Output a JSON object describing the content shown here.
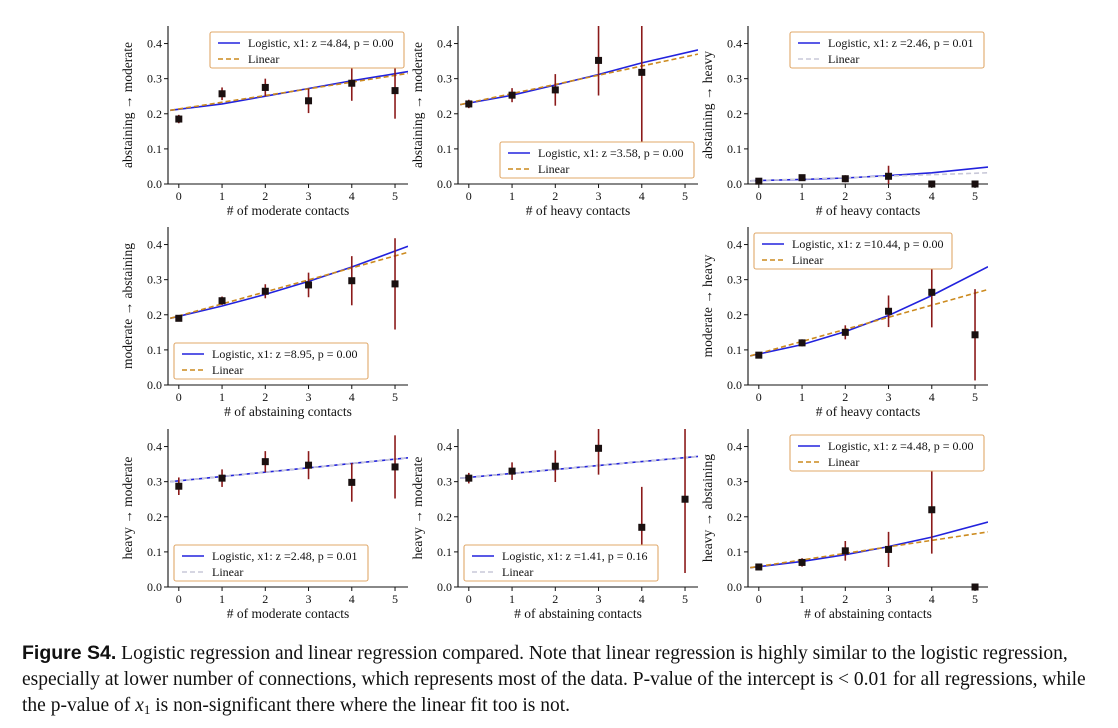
{
  "colors": {
    "logistic": "#2222dd",
    "linear": "#cc8a1e",
    "linear_faint": "#c8c8d8",
    "errorbar": "#8b1a1a",
    "marker": "#1a1010",
    "legend_border": "#e0a86a"
  },
  "legend_labels": {
    "linear": "Linear"
  },
  "chart_data": [
    {
      "type": "scatter",
      "xlabel": "# of moderate contacts",
      "ylabel": "abstaining → moderate",
      "x": [
        0,
        1,
        2,
        3,
        4,
        5
      ],
      "y": [
        0.185,
        0.257,
        0.275,
        0.237,
        0.287,
        0.266
      ],
      "err": [
        0.012,
        0.018,
        0.025,
        0.035,
        0.05,
        0.08
      ],
      "logistic_fit": {
        "label": "Logistic, x1: z =4.84, p = 0.00",
        "x": [
          -0.2,
          1,
          2,
          3,
          4,
          5.3
        ],
        "y": [
          0.21,
          0.228,
          0.25,
          0.272,
          0.294,
          0.32
        ]
      },
      "linear_fit": {
        "label": "Linear",
        "x": [
          -0.2,
          5.3
        ],
        "y": [
          0.21,
          0.315
        ],
        "faint": false
      },
      "legend_position": "top-right",
      "xlim": [
        -0.25,
        5.3
      ],
      "ylim": [
        0,
        0.45
      ],
      "xticks": [
        0,
        1,
        2,
        3,
        4,
        5
      ],
      "yticks": [
        0,
        0.1,
        0.2,
        0.3,
        0.4
      ]
    },
    {
      "type": "scatter",
      "xlabel": "# of heavy contacts",
      "ylabel": "abstaining → moderate",
      "x": [
        0,
        1,
        2,
        3,
        4
      ],
      "y": [
        0.228,
        0.253,
        0.268,
        0.352,
        0.318
      ],
      "err": [
        0.012,
        0.02,
        0.045,
        0.1,
        0.2
      ],
      "logistic_fit": {
        "label": "Logistic, x1: z =3.58, p = 0.00",
        "x": [
          -0.2,
          1,
          2,
          3,
          4,
          5.3
        ],
        "y": [
          0.226,
          0.253,
          0.282,
          0.312,
          0.345,
          0.382
        ]
      },
      "linear_fit": {
        "label": "Linear",
        "x": [
          -0.2,
          5.3
        ],
        "y": [
          0.226,
          0.37
        ],
        "faint": false
      },
      "legend_position": "bottom-right",
      "xlim": [
        -0.25,
        5.3
      ],
      "ylim": [
        0,
        0.45
      ],
      "xticks": [
        0,
        1,
        2,
        3,
        4,
        5
      ],
      "yticks": [
        0,
        0.1,
        0.2,
        0.3,
        0.4
      ]
    },
    {
      "type": "scatter",
      "xlabel": "# of heavy contacts",
      "ylabel": "abstaining → heavy",
      "x": [
        0,
        1,
        2,
        3,
        4,
        5
      ],
      "y": [
        0.008,
        0.018,
        0.015,
        0.022,
        0.0,
        0.0
      ],
      "err": [
        0.003,
        0.008,
        0.01,
        0.03,
        0.0,
        0.0
      ],
      "logistic_fit": {
        "label": "Logistic, x1: z =2.46, p = 0.01",
        "x": [
          -0.2,
          1,
          2,
          3,
          4,
          5.3
        ],
        "y": [
          0.009,
          0.013,
          0.017,
          0.024,
          0.032,
          0.048
        ]
      },
      "linear_fit": {
        "label": "Linear",
        "x": [
          -0.2,
          5.3
        ],
        "y": [
          0.009,
          0.032
        ],
        "faint": true
      },
      "legend_position": "top-right",
      "xlim": [
        -0.25,
        5.3
      ],
      "ylim": [
        0,
        0.45
      ],
      "xticks": [
        0,
        1,
        2,
        3,
        4,
        5
      ],
      "yticks": [
        0,
        0.1,
        0.2,
        0.3,
        0.4
      ]
    },
    {
      "type": "scatter",
      "xlabel": "# of abstaining contacts",
      "ylabel": "moderate → abstaining",
      "x": [
        0,
        1,
        2,
        3,
        4,
        5
      ],
      "y": [
        0.19,
        0.24,
        0.267,
        0.285,
        0.297,
        0.288
      ],
      "err": [
        0.007,
        0.012,
        0.02,
        0.035,
        0.07,
        0.13
      ],
      "logistic_fit": {
        "label": "Logistic, x1: z =8.95, p = 0.00",
        "x": [
          -0.2,
          1,
          2,
          3,
          4,
          5.3
        ],
        "y": [
          0.19,
          0.225,
          0.258,
          0.295,
          0.336,
          0.395
        ]
      },
      "linear_fit": {
        "label": "Linear",
        "x": [
          -0.2,
          5.3
        ],
        "y": [
          0.19,
          0.378
        ],
        "faint": false
      },
      "legend_position": "bottom-left",
      "xlim": [
        -0.25,
        5.3
      ],
      "ylim": [
        0,
        0.45
      ],
      "xticks": [
        0,
        1,
        2,
        3,
        4,
        5
      ],
      "yticks": [
        0,
        0.1,
        0.2,
        0.3,
        0.4
      ]
    },
    {
      "type": "scatter",
      "xlabel": "# of heavy contacts",
      "ylabel": "moderate → heavy",
      "x": [
        0,
        1,
        2,
        3,
        4,
        5
      ],
      "y": [
        0.085,
        0.12,
        0.15,
        0.21,
        0.264,
        0.143
      ],
      "err": [
        0.006,
        0.01,
        0.02,
        0.045,
        0.1,
        0.13
      ],
      "logistic_fit": {
        "label": "Logistic, x1: z =10.44, p = 0.00",
        "x": [
          -0.2,
          1,
          2,
          3,
          4,
          5.3
        ],
        "y": [
          0.083,
          0.115,
          0.152,
          0.198,
          0.255,
          0.337
        ]
      },
      "linear_fit": {
        "label": "Linear",
        "x": [
          -0.2,
          5.3
        ],
        "y": [
          0.083,
          0.272
        ],
        "faint": false
      },
      "legend_position": "top-left",
      "xlim": [
        -0.25,
        5.3
      ],
      "ylim": [
        0,
        0.45
      ],
      "xticks": [
        0,
        1,
        2,
        3,
        4,
        5
      ],
      "yticks": [
        0,
        0.1,
        0.2,
        0.3,
        0.4
      ]
    },
    {
      "type": "scatter",
      "xlabel": "# of moderate contacts",
      "ylabel": "heavy → moderate",
      "x": [
        0,
        1,
        2,
        3,
        4,
        5
      ],
      "y": [
        0.287,
        0.31,
        0.357,
        0.347,
        0.298,
        0.342
      ],
      "err": [
        0.025,
        0.025,
        0.03,
        0.04,
        0.055,
        0.09
      ],
      "logistic_fit": {
        "label": "Logistic, x1: z =2.48, p = 0.01",
        "x": [
          -0.2,
          5.3
        ],
        "y": [
          0.3,
          0.368
        ]
      },
      "linear_fit": {
        "label": "Linear",
        "x": [
          -0.2,
          5.3
        ],
        "y": [
          0.3,
          0.368
        ],
        "faint": true
      },
      "legend_position": "bottom-left",
      "xlim": [
        -0.25,
        5.3
      ],
      "ylim": [
        0,
        0.45
      ],
      "xticks": [
        0,
        1,
        2,
        3,
        4,
        5
      ],
      "yticks": [
        0,
        0.1,
        0.2,
        0.3,
        0.4
      ]
    },
    {
      "type": "scatter",
      "xlabel": "# of abstaining contacts",
      "ylabel": "heavy → moderate",
      "x": [
        0,
        1,
        2,
        3,
        4,
        5
      ],
      "y": [
        0.31,
        0.33,
        0.344,
        0.395,
        0.17,
        0.25
      ],
      "err": [
        0.015,
        0.025,
        0.045,
        0.075,
        0.115,
        0.21
      ],
      "logistic_fit": {
        "label": "Logistic, x1: z =1.41, p = 0.16",
        "x": [
          -0.2,
          5.3
        ],
        "y": [
          0.31,
          0.372
        ]
      },
      "linear_fit": {
        "label": "Linear",
        "x": [
          -0.2,
          5.3
        ],
        "y": [
          0.31,
          0.372
        ],
        "faint": true
      },
      "legend_position": "bottom-left",
      "xlim": [
        -0.25,
        5.3
      ],
      "ylim": [
        0,
        0.45
      ],
      "xticks": [
        0,
        1,
        2,
        3,
        4,
        5
      ],
      "yticks": [
        0,
        0.1,
        0.2,
        0.3,
        0.4
      ]
    },
    {
      "type": "scatter",
      "xlabel": "# of abstaining contacts",
      "ylabel": "heavy → abstaining",
      "x": [
        0,
        1,
        2,
        3,
        4,
        5
      ],
      "y": [
        0.057,
        0.07,
        0.103,
        0.107,
        0.22,
        0.0
      ],
      "err": [
        0.006,
        0.012,
        0.028,
        0.05,
        0.125,
        0.0
      ],
      "logistic_fit": {
        "label": "Logistic, x1: z =4.48, p = 0.00",
        "x": [
          -0.2,
          1,
          2,
          3,
          4,
          5.3
        ],
        "y": [
          0.055,
          0.073,
          0.092,
          0.115,
          0.142,
          0.185
        ]
      },
      "linear_fit": {
        "label": "Linear",
        "x": [
          -0.2,
          5.3
        ],
        "y": [
          0.055,
          0.157
        ],
        "faint": false
      },
      "legend_position": "top-right",
      "xlim": [
        -0.25,
        5.3
      ],
      "ylim": [
        0,
        0.45
      ],
      "xticks": [
        0,
        1,
        2,
        3,
        4,
        5
      ],
      "yticks": [
        0,
        0.1,
        0.2,
        0.3,
        0.4
      ]
    }
  ],
  "caption": {
    "label": "Figure S4.",
    "text_before_math": " Logistic regression and linear regression compared. Note that linear regression is highly similar to the logistic regression, especially at lower number of connections, which represents most of the data. P-value of the intercept is < 0.01 for all regressions, while the p-value of ",
    "math_var": "x",
    "math_sub": "1",
    "text_after_math": " is non-significant there where the linear fit too is not."
  }
}
